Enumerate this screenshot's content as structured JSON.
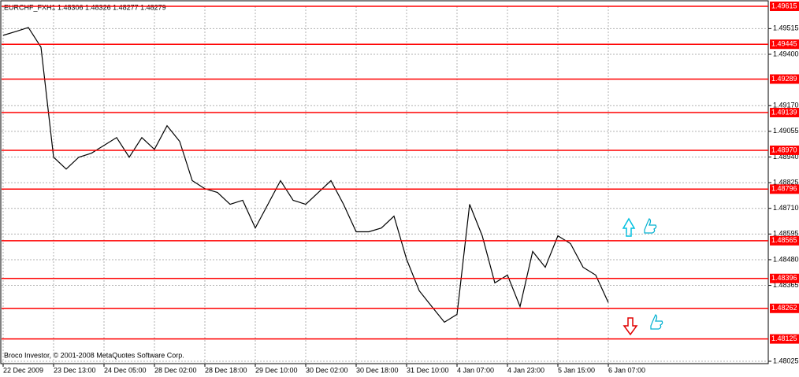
{
  "chart_data": {
    "type": "line",
    "title": "EURCHF_FXH1  1.48306 1.48326 1.48277 1.48279",
    "footer": "Broco Investor, © 2001-2008 MetaQuotes Software Corp.",
    "ylim": [
      1.48025,
      1.49615
    ],
    "yticks": [
      1.49515,
      {
        "value": 1.494,
        "label": "1.49400"
      },
      {
        "value": 1.4917,
        "label": "1.49170"
      },
      1.49055,
      {
        "value": 1.4894,
        "label": "1.48940"
      },
      1.48825,
      {
        "value": 1.4871,
        "label": "1.48710"
      },
      1.48595,
      {
        "value": 1.4848,
        "label": "1.48480"
      },
      1.48365,
      1.48025
    ],
    "levels": [
      1.49615,
      1.49445,
      1.49289,
      1.49139,
      {
        "value": 1.4897,
        "label": "1.48970"
      },
      1.48796,
      1.48565,
      1.48396,
      1.48262,
      1.48125
    ],
    "x_labels": [
      "22 Dec 2009",
      "23 Dec 13:00",
      "24 Dec 05:00",
      "28 Dec 02:00",
      "28 Dec 18:00",
      "29 Dec 10:00",
      "30 Dec 02:00",
      "30 Dec 18:00",
      "31 Dec 10:00",
      "4 Jan 07:00",
      "4 Jan 23:00",
      "5 Jan 15:00",
      "6 Jan 07:00"
    ],
    "series": [
      {
        "color": "#000000",
        "values": [
          1.49485,
          1.49502,
          1.4952,
          1.49432,
          1.48939,
          1.48886,
          1.48939,
          1.48957,
          1.48992,
          1.49027,
          1.48939,
          1.49027,
          1.48974,
          1.4908,
          1.4901,
          1.48834,
          1.48798,
          1.48781,
          1.48728,
          1.48746,
          1.48622,
          1.48728,
          1.48834,
          1.48746,
          1.48728,
          1.48781,
          1.48834,
          1.48728,
          1.48605,
          1.48605,
          1.48622,
          1.48675,
          1.48482,
          1.48341,
          1.4827,
          1.482,
          1.48235,
          1.48728,
          1.48587,
          1.48376,
          1.48411,
          1.4827,
          1.48517,
          1.48446,
          1.48587,
          1.48552,
          1.48446,
          1.48411,
          1.48288
        ]
      }
    ],
    "level_color": "#ff0000",
    "grid": true
  }
}
